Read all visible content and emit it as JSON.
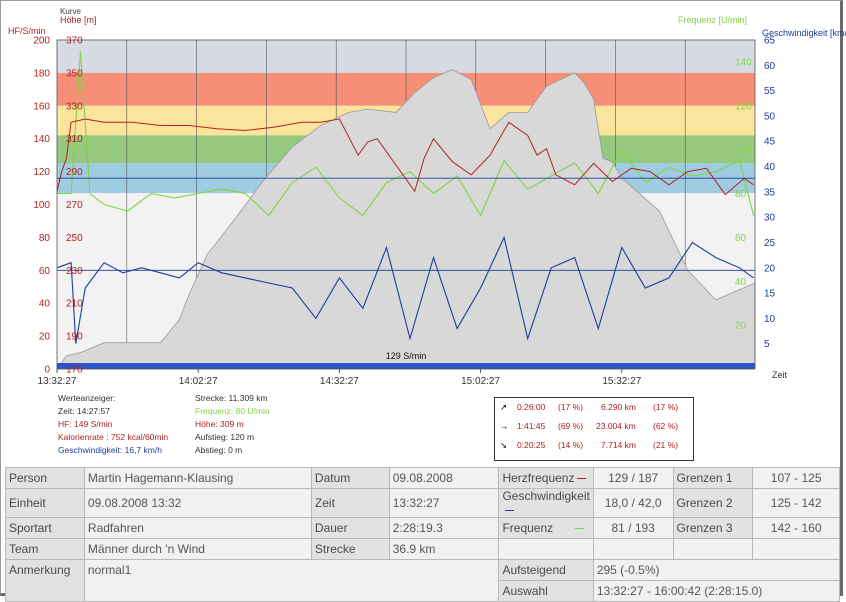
{
  "chart": {
    "label_kurve": "Kurve",
    "label_hoehe": "Höhe [m]",
    "label_hf": "HF/S/min",
    "label_frequenz": "Frequenz [U/min]",
    "label_geschw": "Geschwindigkeit [km/h]",
    "label_zeit": "Zeit",
    "hf_ticks": [
      "200",
      "180",
      "160",
      "140",
      "120",
      "100",
      "80",
      "60",
      "40",
      "20",
      "0"
    ],
    "hoehe_ticks": [
      "370",
      "350",
      "330",
      "310",
      "290",
      "270",
      "250",
      "230",
      "210",
      "190",
      "170"
    ],
    "speed_ticks": [
      "65",
      "60",
      "55",
      "50",
      "45",
      "40",
      "35",
      "30",
      "25",
      "20",
      "15",
      "10",
      "5"
    ],
    "freq_ticks": [
      "140",
      "120",
      "100",
      "80",
      "60",
      "40",
      "20"
    ],
    "time_ticks": [
      "13:32:27",
      "14:02:27",
      "14:32:27",
      "15:02:27",
      "15:32:27"
    ],
    "marker_text": "129 S/min"
  },
  "chart_data": {
    "type": "line",
    "x_label": "Zeit",
    "x_ticks": [
      "13:32:27",
      "14:02:27",
      "14:32:27",
      "15:02:27",
      "15:32:27"
    ],
    "zones": [
      {
        "from": 180,
        "to": 200,
        "color": "#d7dce4"
      },
      {
        "from": 160,
        "to": 180,
        "color": "#f58f78"
      },
      {
        "from": 142,
        "to": 160,
        "color": "#fbe49b"
      },
      {
        "from": 125,
        "to": 142,
        "color": "#97c87f"
      },
      {
        "from": 107,
        "to": 125,
        "color": "#9fcce0"
      }
    ],
    "series": [
      {
        "name": "Höhe [m]",
        "axis": "left-inner",
        "unit": "m",
        "color": "#aaaaaa",
        "t_min": [
          0,
          2,
          5,
          10,
          18,
          22,
          26,
          28,
          32,
          38,
          44,
          50,
          56,
          62,
          66,
          72,
          76,
          80,
          84,
          88,
          92,
          96,
          100,
          104,
          110,
          112,
          114,
          116,
          118,
          120,
          124,
          128,
          134,
          140,
          148,
          148.3
        ],
        "values": [
          170,
          178,
          180,
          186,
          186,
          186,
          200,
          215,
          240,
          262,
          285,
          305,
          318,
          326,
          328,
          326,
          338,
          347,
          352,
          346,
          316,
          326,
          326,
          342,
          350,
          344,
          334,
          298,
          296,
          286,
          276,
          266,
          230,
          212,
          222,
          222
        ]
      },
      {
        "name": "HF/S/min",
        "axis": "left-outer",
        "unit": "S/min",
        "color": "#b22222",
        "t_min": [
          0,
          1,
          2,
          3,
          6,
          10,
          16,
          22,
          28,
          34,
          40,
          46,
          52,
          56,
          60,
          64,
          66,
          68,
          72,
          76,
          78,
          80,
          84,
          88,
          92,
          96,
          100,
          102,
          104,
          106,
          110,
          114,
          118,
          122,
          126,
          130,
          134,
          138,
          142,
          146,
          148
        ],
        "values": [
          108,
          120,
          128,
          150,
          152,
          150,
          150,
          148,
          148,
          146,
          145,
          147,
          150,
          150,
          152,
          130,
          138,
          140,
          124,
          108,
          128,
          140,
          126,
          118,
          130,
          150,
          142,
          130,
          134,
          118,
          112,
          125,
          114,
          122,
          120,
          112,
          120,
          122,
          106,
          116,
          112
        ]
      },
      {
        "name": "Frequenz [U/min]",
        "axis": "right-inner",
        "unit": "U/min",
        "color": "#7fd640",
        "t_min": [
          0,
          3,
          5,
          7,
          10,
          15,
          20,
          25,
          30,
          35,
          40,
          45,
          50,
          55,
          60,
          65,
          70,
          75,
          80,
          85,
          90,
          95,
          100,
          105,
          110,
          115,
          120,
          125,
          130,
          135,
          140,
          145,
          148
        ],
        "values": [
          80,
          80,
          145,
          80,
          75,
          72,
          80,
          78,
          80,
          82,
          80,
          70,
          85,
          92,
          78,
          70,
          85,
          90,
          80,
          88,
          70,
          95,
          82,
          88,
          94,
          80,
          100,
          85,
          92,
          88,
          90,
          95,
          70
        ]
      },
      {
        "name": "Geschwindigkeit [km/h]",
        "axis": "right-outer",
        "unit": "km/h",
        "color": "#1a3e9a",
        "t_min": [
          0,
          3,
          4,
          6,
          10,
          14,
          18,
          22,
          26,
          30,
          35,
          40,
          45,
          50,
          55,
          60,
          65,
          70,
          75,
          80,
          85,
          90,
          95,
          100,
          105,
          110,
          115,
          120,
          125,
          130,
          135,
          140,
          145,
          148
        ],
        "values": [
          20,
          21,
          5,
          16,
          21,
          19,
          20,
          19,
          18,
          21,
          19,
          18,
          17,
          16,
          10,
          18,
          12,
          24,
          6,
          22,
          8,
          16,
          26,
          6,
          20,
          22,
          8,
          24,
          16,
          18,
          25,
          22,
          20,
          18
        ]
      }
    ],
    "hf_ylim": [
      0,
      200
    ],
    "hoehe_ylim": [
      170,
      370
    ],
    "speed_ylim": [
      0,
      65
    ],
    "freq_ylim": [
      0,
      150
    ],
    "h_lines": [
      {
        "axis": "HF",
        "value": 116
      },
      {
        "axis": "HF",
        "value": 60
      }
    ],
    "marker_label": "129 S/min"
  },
  "info": {
    "werteanzeiger": "Werteanzeiger:",
    "zeit": "Zeit: 14:27:57",
    "hf": "HF: 149 S/min",
    "kalorien": "Kalorienrate : 752 kcal/60min",
    "geschw": "Geschwindigkeit: 16,7 km/h",
    "strecke": "Strecke: 11.309 km",
    "frequenz": "Frequenz: 80 U/min",
    "hoehe": "Höhe: 309 m",
    "aufstieg": "Aufstieg: 120 m",
    "abstieg": "Abstieg: 0 m"
  },
  "laps": [
    {
      "arrow": "↗",
      "time": "0:26:00",
      "pct1": "(17 %)",
      "dist": "6.290 km",
      "pct2": "(17 %)"
    },
    {
      "arrow": "→",
      "time": "1:41:45",
      "pct1": "(69 %)",
      "dist": "23.004 km",
      "pct2": "(62 %)"
    },
    {
      "arrow": "↘",
      "time": "0:20:25",
      "pct1": "(14 %)",
      "dist": "7.714 km",
      "pct2": "(21 %)"
    }
  ],
  "table": {
    "person_l": "Person",
    "person_v": "Martin Hagemann-Klausing",
    "datum_l": "Datum",
    "datum_v": "09.08.2008",
    "herz_l": "Herzfrequenz",
    "herz_v": "129 / 187",
    "g1_l": "Grenzen 1",
    "g1_v": "107 - 125",
    "einheit_l": "Einheit",
    "einheit_v": "09.08.2008 13:32",
    "zeit_l": "Zeit",
    "zeit_v": "13:32:27",
    "gesch_l": "Geschwindigkeit",
    "gesch_v": "18,0 / 42,0",
    "g2_l": "Grenzen 2",
    "g2_v": "125 - 142",
    "sport_l": "Sportart",
    "sport_v": "Radfahren",
    "dauer_l": "Dauer",
    "dauer_v": "2:28:19.3",
    "freq_l": "Frequenz",
    "freq_v": "81 / 193",
    "g3_l": "Grenzen 3",
    "g3_v": "142 - 160",
    "team_l": "Team",
    "team_v": "Männer durch 'n Wind",
    "strecke_l": "Strecke",
    "strecke_v": "36.9 km",
    "anm_l": "Anmerkung",
    "anm_v": "normal1",
    "aufst_l": "Aufsteigend",
    "aufst_v": "295 (-0.5%)",
    "ausw_l": "Auswahl",
    "ausw_v": "13:32:27 - 16:00:42 (2:28:15.0)"
  },
  "colors": {
    "hf": "#b22222",
    "freq": "#7fd640",
    "speed": "#1a3e9a",
    "hoehe": "#aaaaaa"
  }
}
